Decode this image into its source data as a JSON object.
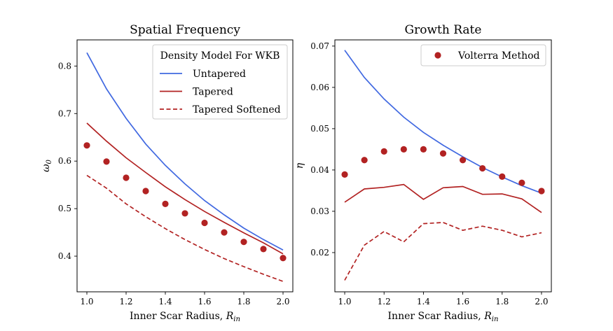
{
  "chart_data": [
    {
      "type": "line",
      "title": "Spatial Frequency",
      "xlabel": "Inner Scar Radius, R_in",
      "ylabel": "ω0",
      "xlim": [
        0.95,
        2.05
      ],
      "ylim": [
        0.325,
        0.855
      ],
      "xticks": [
        1.0,
        1.2,
        1.4,
        1.6,
        1.8,
        2.0
      ],
      "xtick_labels": [
        "1.0",
        "1.2",
        "1.4",
        "1.6",
        "1.8",
        "2.0"
      ],
      "yticks": [
        0.4,
        0.5,
        0.6,
        0.7,
        0.8
      ],
      "ytick_labels": [
        "0.4",
        "0.5",
        "0.6",
        "0.7",
        "0.8"
      ],
      "legend": {
        "title": "Density Model For WKB",
        "placement": "top-right",
        "entries": [
          "Untapered",
          "Tapered",
          "Tapered Softened"
        ]
      },
      "x": [
        1.0,
        1.1,
        1.2,
        1.3,
        1.4,
        1.5,
        1.6,
        1.7,
        1.8,
        1.9,
        2.0
      ],
      "series": [
        {
          "name": "Untapered",
          "style": "solid",
          "color": "#4169e1",
          "values": [
            0.828,
            0.752,
            0.69,
            0.636,
            0.591,
            0.552,
            0.517,
            0.487,
            0.459,
            0.435,
            0.413
          ]
        },
        {
          "name": "Tapered",
          "style": "solid",
          "color": "#b22222",
          "values": [
            0.68,
            0.642,
            0.607,
            0.576,
            0.546,
            0.519,
            0.494,
            0.471,
            0.449,
            0.428,
            0.405
          ]
        },
        {
          "name": "Tapered Softened",
          "style": "dashed",
          "color": "#b22222",
          "values": [
            0.57,
            0.543,
            0.51,
            0.483,
            0.458,
            0.435,
            0.414,
            0.395,
            0.378,
            0.362,
            0.347
          ]
        },
        {
          "name": "",
          "style": "markers",
          "color": "#b22222",
          "values": [
            0.633,
            0.599,
            0.565,
            0.537,
            0.51,
            0.49,
            0.47,
            0.45,
            0.43,
            0.415,
            0.396
          ]
        }
      ]
    },
    {
      "type": "line",
      "title": "Growth Rate",
      "xlabel": "Inner Scar Radius, R_in",
      "ylabel": "η",
      "xlim": [
        0.95,
        2.05
      ],
      "ylim": [
        0.0105,
        0.0715
      ],
      "xticks": [
        1.0,
        1.2,
        1.4,
        1.6,
        1.8,
        2.0
      ],
      "xtick_labels": [
        "1.0",
        "1.2",
        "1.4",
        "1.6",
        "1.8",
        "2.0"
      ],
      "yticks": [
        0.02,
        0.03,
        0.04,
        0.05,
        0.06,
        0.07
      ],
      "ytick_labels": [
        "0.02",
        "0.03",
        "0.04",
        "0.05",
        "0.06",
        "0.07"
      ],
      "legend": {
        "placement": "top-right",
        "entries": [
          "Volterra Method"
        ]
      },
      "x": [
        1.0,
        1.1,
        1.2,
        1.3,
        1.4,
        1.5,
        1.6,
        1.7,
        1.8,
        1.9,
        2.0
      ],
      "series": [
        {
          "name": "",
          "style": "solid",
          "color": "#4169e1",
          "values": [
            0.069,
            0.0624,
            0.0572,
            0.0528,
            0.0491,
            0.046,
            0.0432,
            0.0406,
            0.0383,
            0.0362,
            0.0344
          ]
        },
        {
          "name": "",
          "style": "solid",
          "color": "#b22222",
          "values": [
            0.0322,
            0.0354,
            0.0358,
            0.0365,
            0.0329,
            0.0357,
            0.036,
            0.0341,
            0.0342,
            0.033,
            0.0297
          ]
        },
        {
          "name": "",
          "style": "dashed",
          "color": "#b22222",
          "values": [
            0.0133,
            0.0218,
            0.0251,
            0.0226,
            0.027,
            0.0273,
            0.0254,
            0.0264,
            0.0254,
            0.0238,
            0.0248
          ]
        },
        {
          "name": "Volterra Method",
          "style": "markers",
          "color": "#b22222",
          "values": [
            0.0389,
            0.0424,
            0.0445,
            0.045,
            0.045,
            0.044,
            0.0424,
            0.0404,
            0.0384,
            0.0369,
            0.0349
          ]
        }
      ]
    }
  ]
}
